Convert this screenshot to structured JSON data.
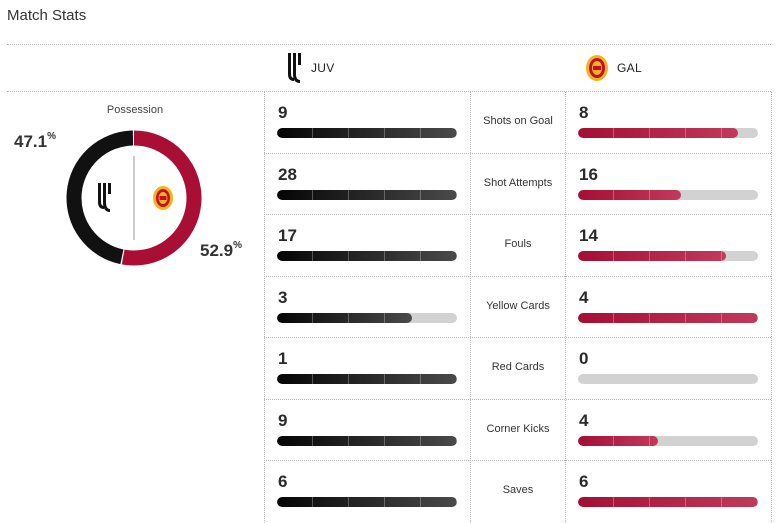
{
  "title": "Match Stats",
  "teams": {
    "home": {
      "abbr": "JUV",
      "color": "#111111",
      "logo_icon": "juventus-logo-icon"
    },
    "away": {
      "abbr": "GAL",
      "color": "#a90e35",
      "logo_icon": "galatasaray-logo-icon"
    }
  },
  "possession": {
    "label": "Possession",
    "home_value": "47.1",
    "away_value": "52.9",
    "unit": "%"
  },
  "stats": [
    {
      "label": "Shots on Goal",
      "home": 9,
      "away": 8
    },
    {
      "label": "Shot Attempts",
      "home": 28,
      "away": 16
    },
    {
      "label": "Fouls",
      "home": 17,
      "away": 14
    },
    {
      "label": "Yellow Cards",
      "home": 3,
      "away": 4
    },
    {
      "label": "Red Cards",
      "home": 1,
      "away": 0
    },
    {
      "label": "Corner Kicks",
      "home": 9,
      "away": 4
    },
    {
      "label": "Saves",
      "home": 6,
      "away": 6
    }
  ]
}
